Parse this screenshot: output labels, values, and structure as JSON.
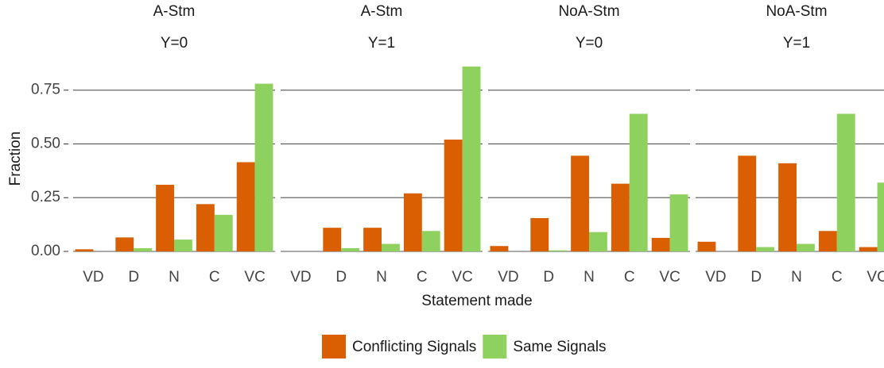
{
  "chart_data": {
    "type": "bar",
    "x_label": "Statement made",
    "y_label": "Fraction",
    "categories": [
      "VD",
      "D",
      "N",
      "C",
      "VC"
    ],
    "ylim": [
      0,
      0.9
    ],
    "yticks": [
      {
        "value": 0,
        "label": "0.00"
      },
      {
        "value": 0.25,
        "label": "0.25"
      },
      {
        "value": 0.5,
        "label": "0.50"
      },
      {
        "value": 0.75,
        "label": "0.75"
      }
    ],
    "grid": true,
    "panels": [
      {
        "title": "A-Stm",
        "subtitle": "Y=0"
      },
      {
        "title": "A-Stm",
        "subtitle": "Y=1"
      },
      {
        "title": "NoA-Stm",
        "subtitle": "Y=0"
      },
      {
        "title": "NoA-Stm",
        "subtitle": "Y=1"
      }
    ],
    "series": [
      {
        "name": "Conflicting Signals",
        "color": "#d95f02",
        "values": [
          [
            0.01,
            0.065,
            0.31,
            0.22,
            0.415
          ],
          [
            0,
            0.11,
            0.11,
            0.27,
            0.52
          ],
          [
            0.025,
            0.155,
            0.445,
            0.315,
            0.063
          ],
          [
            0.045,
            0.445,
            0.41,
            0.095,
            0.02
          ]
        ]
      },
      {
        "name": "Same Signals",
        "color": "#8fd15e",
        "values": [
          [
            0,
            0.015,
            0.055,
            0.17,
            0.78
          ],
          [
            0,
            0.015,
            0.035,
            0.095,
            0.86
          ],
          [
            0,
            0.005,
            0.09,
            0.64,
            0.265
          ],
          [
            0,
            0.02,
            0.035,
            0.64,
            0.32
          ]
        ]
      }
    ]
  }
}
